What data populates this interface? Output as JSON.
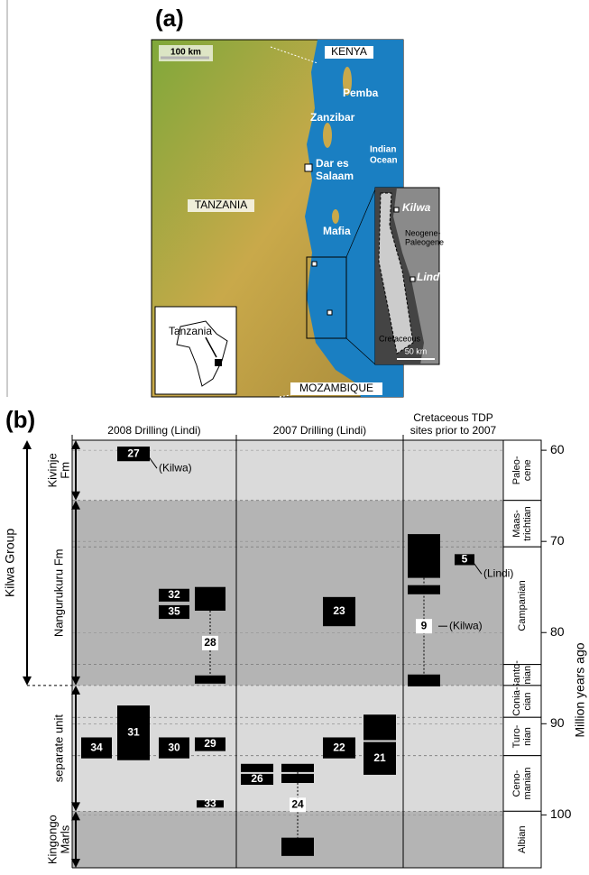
{
  "panel_a": {
    "label": "(a)",
    "scale_bar": "100 km",
    "labels": {
      "kenya": "KENYA",
      "pemba": "Pemba",
      "zanzibar": "Zanzibar",
      "indian_ocean": [
        "Indian",
        "Ocean"
      ],
      "dar_es_salaam": [
        "Dar es",
        "Salaam"
      ],
      "tanzania": "TANZANIA",
      "mafia": "Mafia",
      "mozambique": "MOZAMBIQUE"
    },
    "inset_africa": "Tanzania",
    "inset_coast": {
      "kilwa": "Kilwa",
      "neogene": [
        "Neogene-",
        "Paleogene"
      ],
      "lindi": "Lindi",
      "cretaceous": "Cretaceous",
      "scale_bar": "50 km"
    }
  },
  "panel_b": {
    "label": "(b)",
    "columns": [
      [
        "2008 Drilling (Lindi)"
      ],
      [
        "2007 Drilling (Lindi)"
      ],
      [
        "Cretaceous TDP",
        "sites prior to 2007"
      ]
    ],
    "axis_label": "Million years ago",
    "ylim": [
      58.9,
      105.8
    ],
    "yticks": [
      60,
      70,
      80,
      90,
      100
    ],
    "group": {
      "name": "Kilwa Group",
      "top": 58.9,
      "bottom": 85.8
    },
    "formations": [
      {
        "name": [
          "Kivinje",
          "Fm"
        ],
        "top": 58.9,
        "bottom": 65.5
      },
      {
        "name": [
          "Nangurukuru Fm"
        ],
        "top": 65.5,
        "bottom": 85.8
      },
      {
        "name": [
          "separate unit"
        ],
        "top": 85.8,
        "bottom": 99.6
      },
      {
        "name": [
          "Kingongo",
          "Marls"
        ],
        "top": 99.6,
        "bottom": 105.8
      }
    ],
    "stages": [
      {
        "name": [
          "Paleo-",
          "cene"
        ],
        "top": 58.9,
        "bottom": 65.5
      },
      {
        "name": [
          "Maas-",
          "trichtian"
        ],
        "top": 65.5,
        "bottom": 70.6
      },
      {
        "name": [
          "Campanian"
        ],
        "top": 70.6,
        "bottom": 83.5
      },
      {
        "name": [
          "Santo-",
          "nian"
        ],
        "top": 83.5,
        "bottom": 85.8
      },
      {
        "name": [
          "Conia-",
          "cian"
        ],
        "top": 85.8,
        "bottom": 89.3
      },
      {
        "name": [
          "Turo-",
          "nian"
        ],
        "top": 89.3,
        "bottom": 93.5
      },
      {
        "name": [
          "Ceno-",
          "manian"
        ],
        "top": 93.5,
        "bottom": 99.6
      },
      {
        "name": [
          "Albian"
        ],
        "top": 99.6,
        "bottom": 105.8
      }
    ],
    "sites": [
      {
        "label": "27",
        "column": 0,
        "blocks": [
          [
            59.6,
            61.2
          ]
        ],
        "note": "(Kilwa)"
      },
      {
        "label": "32",
        "column": 0,
        "blocks": [
          [
            75.2,
            76.6
          ]
        ]
      },
      {
        "label": "35",
        "column": 0,
        "blocks": [
          [
            77,
            78.5
          ]
        ]
      },
      {
        "label": "28",
        "column": 0,
        "blocks": [
          [
            75,
            77.6
          ],
          [
            84.7,
            85.6
          ]
        ]
      },
      {
        "label": "34",
        "column": 0,
        "blocks": [
          [
            91.5,
            93.8
          ]
        ]
      },
      {
        "label": "31",
        "column": 0,
        "blocks": [
          [
            88,
            94
          ]
        ]
      },
      {
        "label": "30",
        "column": 0,
        "blocks": [
          [
            91.5,
            93.8
          ]
        ]
      },
      {
        "label": "29",
        "column": 0,
        "blocks": [
          [
            91.5,
            93
          ]
        ]
      },
      {
        "label": "33",
        "column": 0,
        "blocks": [
          [
            98.4,
            99.2
          ]
        ]
      },
      {
        "label": "26",
        "column": 1,
        "blocks": [
          [
            94.4,
            95.3
          ],
          [
            95.5,
            96.7
          ]
        ]
      },
      {
        "label": "24",
        "column": 1,
        "blocks": [
          [
            94.4,
            95.3
          ],
          [
            95.5,
            96.5
          ],
          [
            102.5,
            104.5
          ]
        ]
      },
      {
        "label": "23",
        "column": 1,
        "blocks": [
          [
            76.1,
            79.3
          ]
        ]
      },
      {
        "label": "22",
        "column": 1,
        "blocks": [
          [
            91.5,
            93.8
          ]
        ]
      },
      {
        "label": "21",
        "column": 1,
        "blocks": [
          [
            89,
            91.8
          ],
          [
            92,
            95.6
          ]
        ]
      },
      {
        "label": "9",
        "column": 2,
        "blocks": [
          [
            69.2,
            74
          ],
          [
            74.8,
            75.8
          ],
          [
            84.6,
            85.9
          ]
        ],
        "note": "(Kilwa)"
      },
      {
        "label": "5",
        "column": 2,
        "blocks": [
          [
            71.4,
            72.6
          ]
        ],
        "note": "(Lindi)"
      }
    ]
  }
}
